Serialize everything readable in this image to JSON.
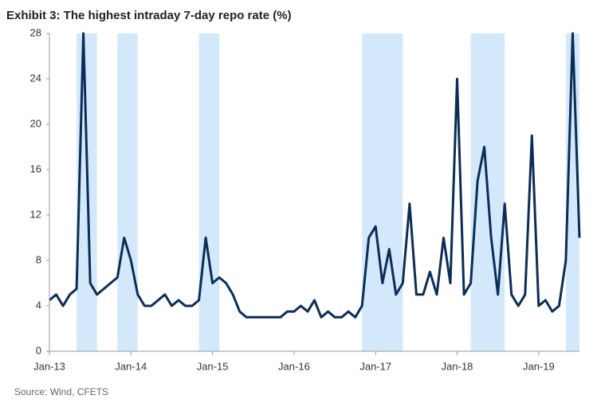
{
  "chart_data": {
    "type": "line",
    "title": "Exhibit 3: The highest intraday 7-day repo rate (%)",
    "source": "Source: Wind, CFETS",
    "x": [
      "2013-01",
      "2013-02",
      "2013-03",
      "2013-04",
      "2013-05",
      "2013-06",
      "2013-07",
      "2013-08",
      "2013-09",
      "2013-10",
      "2013-11",
      "2013-12",
      "2014-01",
      "2014-02",
      "2014-03",
      "2014-04",
      "2014-05",
      "2014-06",
      "2014-07",
      "2014-08",
      "2014-09",
      "2014-10",
      "2014-11",
      "2014-12",
      "2015-01",
      "2015-02",
      "2015-03",
      "2015-04",
      "2015-05",
      "2015-06",
      "2015-07",
      "2015-08",
      "2015-09",
      "2015-10",
      "2015-11",
      "2015-12",
      "2016-01",
      "2016-02",
      "2016-03",
      "2016-04",
      "2016-05",
      "2016-06",
      "2016-07",
      "2016-08",
      "2016-09",
      "2016-10",
      "2016-11",
      "2016-12",
      "2017-01",
      "2017-02",
      "2017-03",
      "2017-04",
      "2017-05",
      "2017-06",
      "2017-07",
      "2017-08",
      "2017-09",
      "2017-10",
      "2017-11",
      "2017-12",
      "2018-01",
      "2018-02",
      "2018-03",
      "2018-04",
      "2018-05",
      "2018-06",
      "2018-07",
      "2018-08",
      "2018-09",
      "2018-10",
      "2018-11",
      "2018-12",
      "2019-01",
      "2019-02",
      "2019-03",
      "2019-04",
      "2019-05",
      "2019-06",
      "2019-07"
    ],
    "series": [
      {
        "name": "Highest intraday 7-day repo rate",
        "color": "#0b2d57",
        "values": [
          4.5,
          5,
          4,
          5,
          5.5,
          28,
          6,
          5,
          5.5,
          6,
          6.5,
          10,
          8,
          5,
          4,
          4,
          4.5,
          5,
          4,
          4.5,
          4,
          4,
          4.5,
          10,
          6,
          6.5,
          6,
          5,
          3.5,
          3,
          3,
          3,
          3,
          3,
          3,
          3.5,
          3.5,
          4,
          3.5,
          4.5,
          3,
          3.5,
          3,
          3,
          3.5,
          3,
          4,
          10,
          11,
          6,
          9,
          5,
          6,
          13,
          5,
          5,
          7,
          5,
          10,
          6,
          24,
          5,
          6,
          15,
          18,
          10,
          5,
          13,
          5,
          4,
          5,
          19,
          4,
          4.5,
          3.5,
          4,
          8,
          28,
          10
        ]
      }
    ],
    "shaded_ranges": [
      [
        "2013-05",
        "2013-08"
      ],
      [
        "2013-11",
        "2014-02"
      ],
      [
        "2014-11",
        "2015-02"
      ],
      [
        "2016-11",
        "2017-05"
      ],
      [
        "2018-03",
        "2018-08"
      ],
      [
        "2019-05",
        "2019-07"
      ]
    ],
    "shade_color": "#d3e9fb",
    "xlim": [
      "2013-01",
      "2019-07"
    ],
    "xticks": [
      {
        "value": "2013-01",
        "label": "Jan-13"
      },
      {
        "value": "2014-01",
        "label": "Jan-14"
      },
      {
        "value": "2015-01",
        "label": "Jan-15"
      },
      {
        "value": "2016-01",
        "label": "Jan-16"
      },
      {
        "value": "2017-01",
        "label": "Jan-17"
      },
      {
        "value": "2018-01",
        "label": "Jan-18"
      },
      {
        "value": "2019-01",
        "label": "Jan-19"
      }
    ],
    "ylim": [
      0,
      28
    ],
    "yticks": [
      0,
      4,
      8,
      12,
      16,
      20,
      24,
      28
    ]
  }
}
